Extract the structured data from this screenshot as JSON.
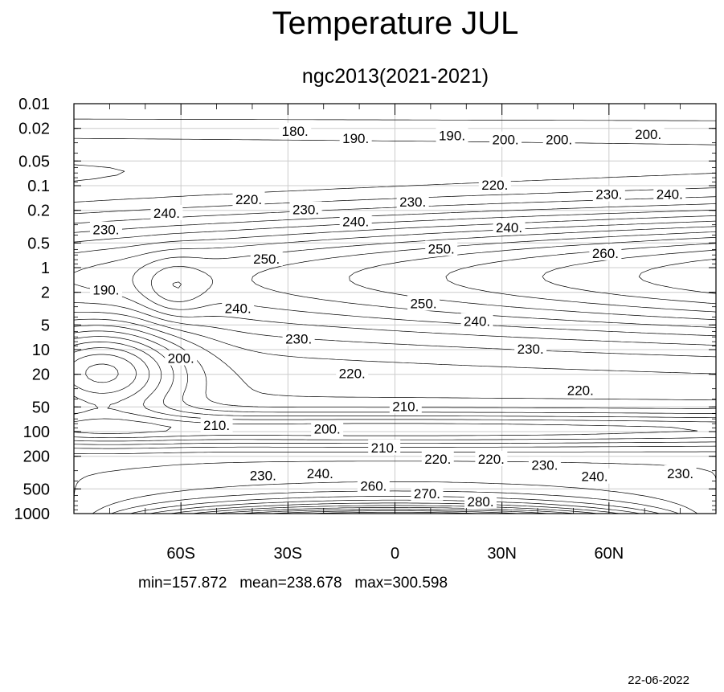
{
  "chart_data": {
    "type": "contour",
    "title": "Temperature JUL",
    "subtitle": "ngc2013(2021-2021)",
    "y_scale": "log",
    "y_reversed": true,
    "yticks": [
      "0.01",
      "0.02",
      "0.05",
      "0.1",
      "0.2",
      "0.5",
      "1",
      "2",
      "5",
      "10",
      "20",
      "50",
      "100",
      "200",
      "500",
      "1000"
    ],
    "xticks": [
      "60S",
      "30S",
      "0",
      "30N",
      "60N"
    ],
    "xtick_values": [
      -60,
      -30,
      0,
      30,
      60
    ],
    "xlim": [
      -90,
      90
    ],
    "ylim": [
      0.01,
      1000
    ],
    "grid": true,
    "contour_interval": 5,
    "contour_labels": [
      {
        "text": "180.",
        "lat": -28,
        "p": 0.022
      },
      {
        "text": "190.",
        "lat": -11,
        "p": 0.027
      },
      {
        "text": "190.",
        "lat": 16,
        "p": 0.025
      },
      {
        "text": "200.",
        "lat": 31,
        "p": 0.028
      },
      {
        "text": "200.",
        "lat": 46,
        "p": 0.028
      },
      {
        "text": "200.",
        "lat": 71,
        "p": 0.024
      },
      {
        "text": "220.",
        "lat": 28,
        "p": 0.1
      },
      {
        "text": "220.",
        "lat": -41,
        "p": 0.15
      },
      {
        "text": "230.",
        "lat": 5,
        "p": 0.16
      },
      {
        "text": "230.",
        "lat": -25,
        "p": 0.2
      },
      {
        "text": "230.",
        "lat": 60,
        "p": 0.13
      },
      {
        "text": "240.",
        "lat": 77,
        "p": 0.13
      },
      {
        "text": "240.",
        "lat": -64,
        "p": 0.22
      },
      {
        "text": "240.",
        "lat": -11,
        "p": 0.28
      },
      {
        "text": "240.",
        "lat": 32,
        "p": 0.33
      },
      {
        "text": "230.",
        "lat": -81,
        "p": 0.35
      },
      {
        "text": "250.",
        "lat": 13,
        "p": 0.6
      },
      {
        "text": "250.",
        "lat": -36,
        "p": 0.8
      },
      {
        "text": "260.",
        "lat": 59,
        "p": 0.68
      },
      {
        "text": "190.",
        "lat": -81,
        "p": 1.9
      },
      {
        "text": "240.",
        "lat": -44,
        "p": 3.2
      },
      {
        "text": "250.",
        "lat": 8,
        "p": 2.8
      },
      {
        "text": "240.",
        "lat": 23,
        "p": 4.6
      },
      {
        "text": "230.",
        "lat": -27,
        "p": 7.5
      },
      {
        "text": "230.",
        "lat": 38,
        "p": 10
      },
      {
        "text": "200.",
        "lat": -60,
        "p": 13
      },
      {
        "text": "220.",
        "lat": -12,
        "p": 20
      },
      {
        "text": "220.",
        "lat": 52,
        "p": 32
      },
      {
        "text": "210.",
        "lat": 3,
        "p": 50
      },
      {
        "text": "210.",
        "lat": -50,
        "p": 85
      },
      {
        "text": "200.",
        "lat": -19,
        "p": 95
      },
      {
        "text": "210.",
        "lat": -3,
        "p": 160
      },
      {
        "text": "220.",
        "lat": 12,
        "p": 220
      },
      {
        "text": "220.",
        "lat": 27,
        "p": 220
      },
      {
        "text": "230.",
        "lat": 42,
        "p": 260
      },
      {
        "text": "230.",
        "lat": -37,
        "p": 350
      },
      {
        "text": "240.",
        "lat": -21,
        "p": 330
      },
      {
        "text": "240.",
        "lat": 56,
        "p": 360
      },
      {
        "text": "230.",
        "lat": 80,
        "p": 330
      },
      {
        "text": "260.",
        "lat": -6,
        "p": 470
      },
      {
        "text": "270.",
        "lat": 9,
        "p": 580
      },
      {
        "text": "280.",
        "lat": 24,
        "p": 730
      }
    ],
    "stats": {
      "min": "157.872",
      "mean": "238.678",
      "max": "300.598"
    }
  },
  "stats_text": "min=157.872   mean=238.678   max=300.598",
  "date": "22-06-2022"
}
